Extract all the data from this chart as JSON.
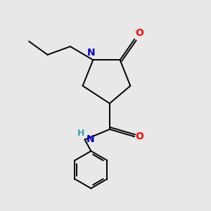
{
  "background_color": "#e8e8e8",
  "bond_color": "#000000",
  "N_color": "#0000cc",
  "N_amide_color": "#3b9e9e",
  "O_color": "#ff0000",
  "figsize": [
    3.0,
    3.0
  ],
  "dpi": 100,
  "xlim": [
    0,
    10
  ],
  "ylim": [
    0,
    10
  ],
  "lw": 1.4
}
